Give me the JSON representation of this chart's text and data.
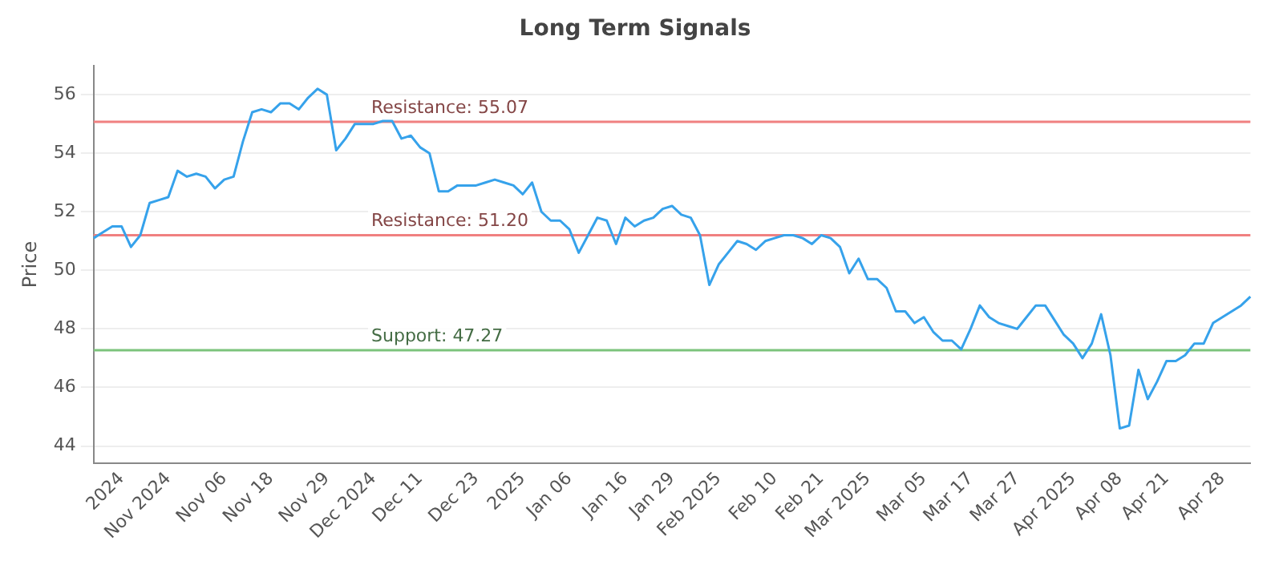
{
  "chart_data": {
    "type": "line",
    "title": "Long Term Signals",
    "ylabel": "Price",
    "categories": [
      null,
      null,
      null,
      "2024",
      null,
      null,
      null,
      null,
      "Nov 2024",
      null,
      null,
      null,
      null,
      null,
      "Nov 06",
      null,
      null,
      null,
      null,
      "Nov 18",
      null,
      null,
      null,
      null,
      null,
      "Nov 29",
      null,
      null,
      null,
      null,
      "Dec 2024",
      null,
      null,
      null,
      null,
      "Dec 11",
      null,
      null,
      null,
      null,
      null,
      "Dec 23",
      null,
      null,
      null,
      null,
      "2025",
      null,
      null,
      null,
      null,
      "Jan 06",
      null,
      null,
      null,
      null,
      null,
      "Jan 16",
      null,
      null,
      null,
      null,
      "Jan 29",
      null,
      null,
      null,
      null,
      "Feb 2025",
      null,
      null,
      null,
      null,
      null,
      "Feb 10",
      null,
      null,
      null,
      null,
      "Feb 21",
      null,
      null,
      null,
      null,
      "Mar 2025",
      null,
      null,
      null,
      null,
      null,
      "Mar 05",
      null,
      null,
      null,
      null,
      "Mar 17",
      null,
      null,
      null,
      null,
      "Mar 27",
      null,
      null,
      null,
      null,
      null,
      "Apr 2025",
      null,
      null,
      null,
      null,
      "Apr 08",
      null,
      null,
      null,
      null,
      "Apr 21",
      null,
      null,
      null,
      null,
      null,
      "Apr 28",
      null,
      null,
      null
    ],
    "series": [
      {
        "color": "#36a2eb",
        "values": [
          51.1,
          51.3,
          51.5,
          51.5,
          50.8,
          51.2,
          52.3,
          52.4,
          52.5,
          53.4,
          53.2,
          53.3,
          53.2,
          52.8,
          53.1,
          53.2,
          54.4,
          55.4,
          55.5,
          55.4,
          55.7,
          55.7,
          55.5,
          55.9,
          56.2,
          56.0,
          54.1,
          54.5,
          55.0,
          55.0,
          55.0,
          55.1,
          55.1,
          54.5,
          54.6,
          54.2,
          54.0,
          52.7,
          52.7,
          52.9,
          52.9,
          52.9,
          53.0,
          53.1,
          53.0,
          52.9,
          52.6,
          53.0,
          52.0,
          51.7,
          51.7,
          51.4,
          50.6,
          51.2,
          51.8,
          51.7,
          50.9,
          51.8,
          51.5,
          51.7,
          51.8,
          52.1,
          52.2,
          51.9,
          51.8,
          51.2,
          49.5,
          50.2,
          50.6,
          51.0,
          50.9,
          50.7,
          51.0,
          51.1,
          51.2,
          51.2,
          51.1,
          50.9,
          51.2,
          51.1,
          50.8,
          49.9,
          50.4,
          49.7,
          49.7,
          49.4,
          48.6,
          48.6,
          48.2,
          48.4,
          47.9,
          47.6,
          47.6,
          47.3,
          48.0,
          48.8,
          48.4,
          48.2,
          48.1,
          48.0,
          48.4,
          48.8,
          48.8,
          48.3,
          47.8,
          47.5,
          47.0,
          47.5,
          48.5,
          47.1,
          44.6,
          44.7,
          46.6,
          45.6,
          46.2,
          46.9,
          46.9,
          47.1,
          47.5,
          47.5,
          48.2,
          48.4,
          48.6,
          48.8,
          49.1
        ]
      }
    ],
    "ylim": [
      43.4,
      57
    ],
    "yticks": [
      44,
      46,
      48,
      50,
      52,
      54,
      56
    ],
    "grid": "y",
    "legend": false,
    "marker": "none",
    "line_style": "solid",
    "ref_lines": [
      {
        "axis": "y",
        "value": 55.07,
        "label": "Resistance: 55.07",
        "color": "#f08080"
      },
      {
        "axis": "y",
        "value": 51.2,
        "label": "Resistance: 51.20",
        "color": "#f08080"
      },
      {
        "axis": "y",
        "value": 47.27,
        "label": "Support: 47.27",
        "color": "#7cc47c"
      }
    ]
  }
}
